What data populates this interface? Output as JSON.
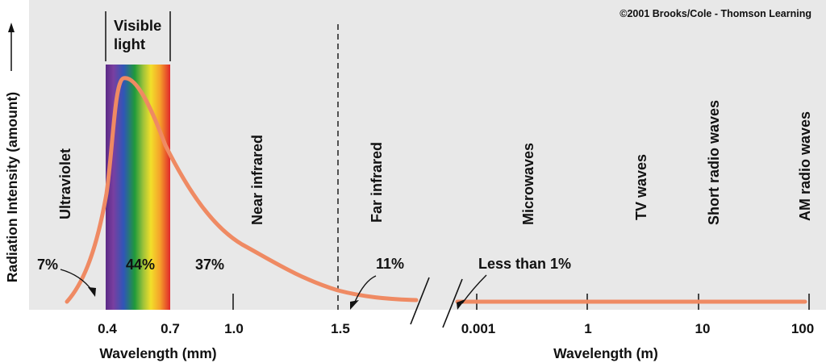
{
  "copyright": "©2001 Brooks/Cole - Thomson Learning",
  "y_axis_label": "Radiation Intensity (amount)",
  "visible_light": {
    "line1": "Visible",
    "line2": "light"
  },
  "regions": [
    {
      "id": "ultraviolet",
      "label": "Ultraviolet"
    },
    {
      "id": "near-infrared",
      "label": "Near infrared"
    },
    {
      "id": "far-infrared",
      "label": "Far infrared"
    },
    {
      "id": "microwaves",
      "label": "Microwaves"
    },
    {
      "id": "tv-waves",
      "label": "TV waves"
    },
    {
      "id": "short-radio-waves",
      "label": "Short radio waves"
    },
    {
      "id": "am-radio-waves",
      "label": "AM radio waves"
    }
  ],
  "percentages": {
    "ultraviolet": "7%",
    "visible": "44%",
    "near_infrared": "37%",
    "far_infrared": "11%",
    "radio": "Less than 1%"
  },
  "axis_left": {
    "label": "Wavelength (mm)",
    "ticks": [
      "0.4",
      "0.7",
      "1.0",
      "1.5"
    ]
  },
  "axis_right": {
    "label": "Wavelength (m)",
    "ticks": [
      "0.001",
      "1",
      "10",
      "100"
    ]
  },
  "colors": {
    "background": "#e8e8e8",
    "curve": "#ef8a63"
  }
}
